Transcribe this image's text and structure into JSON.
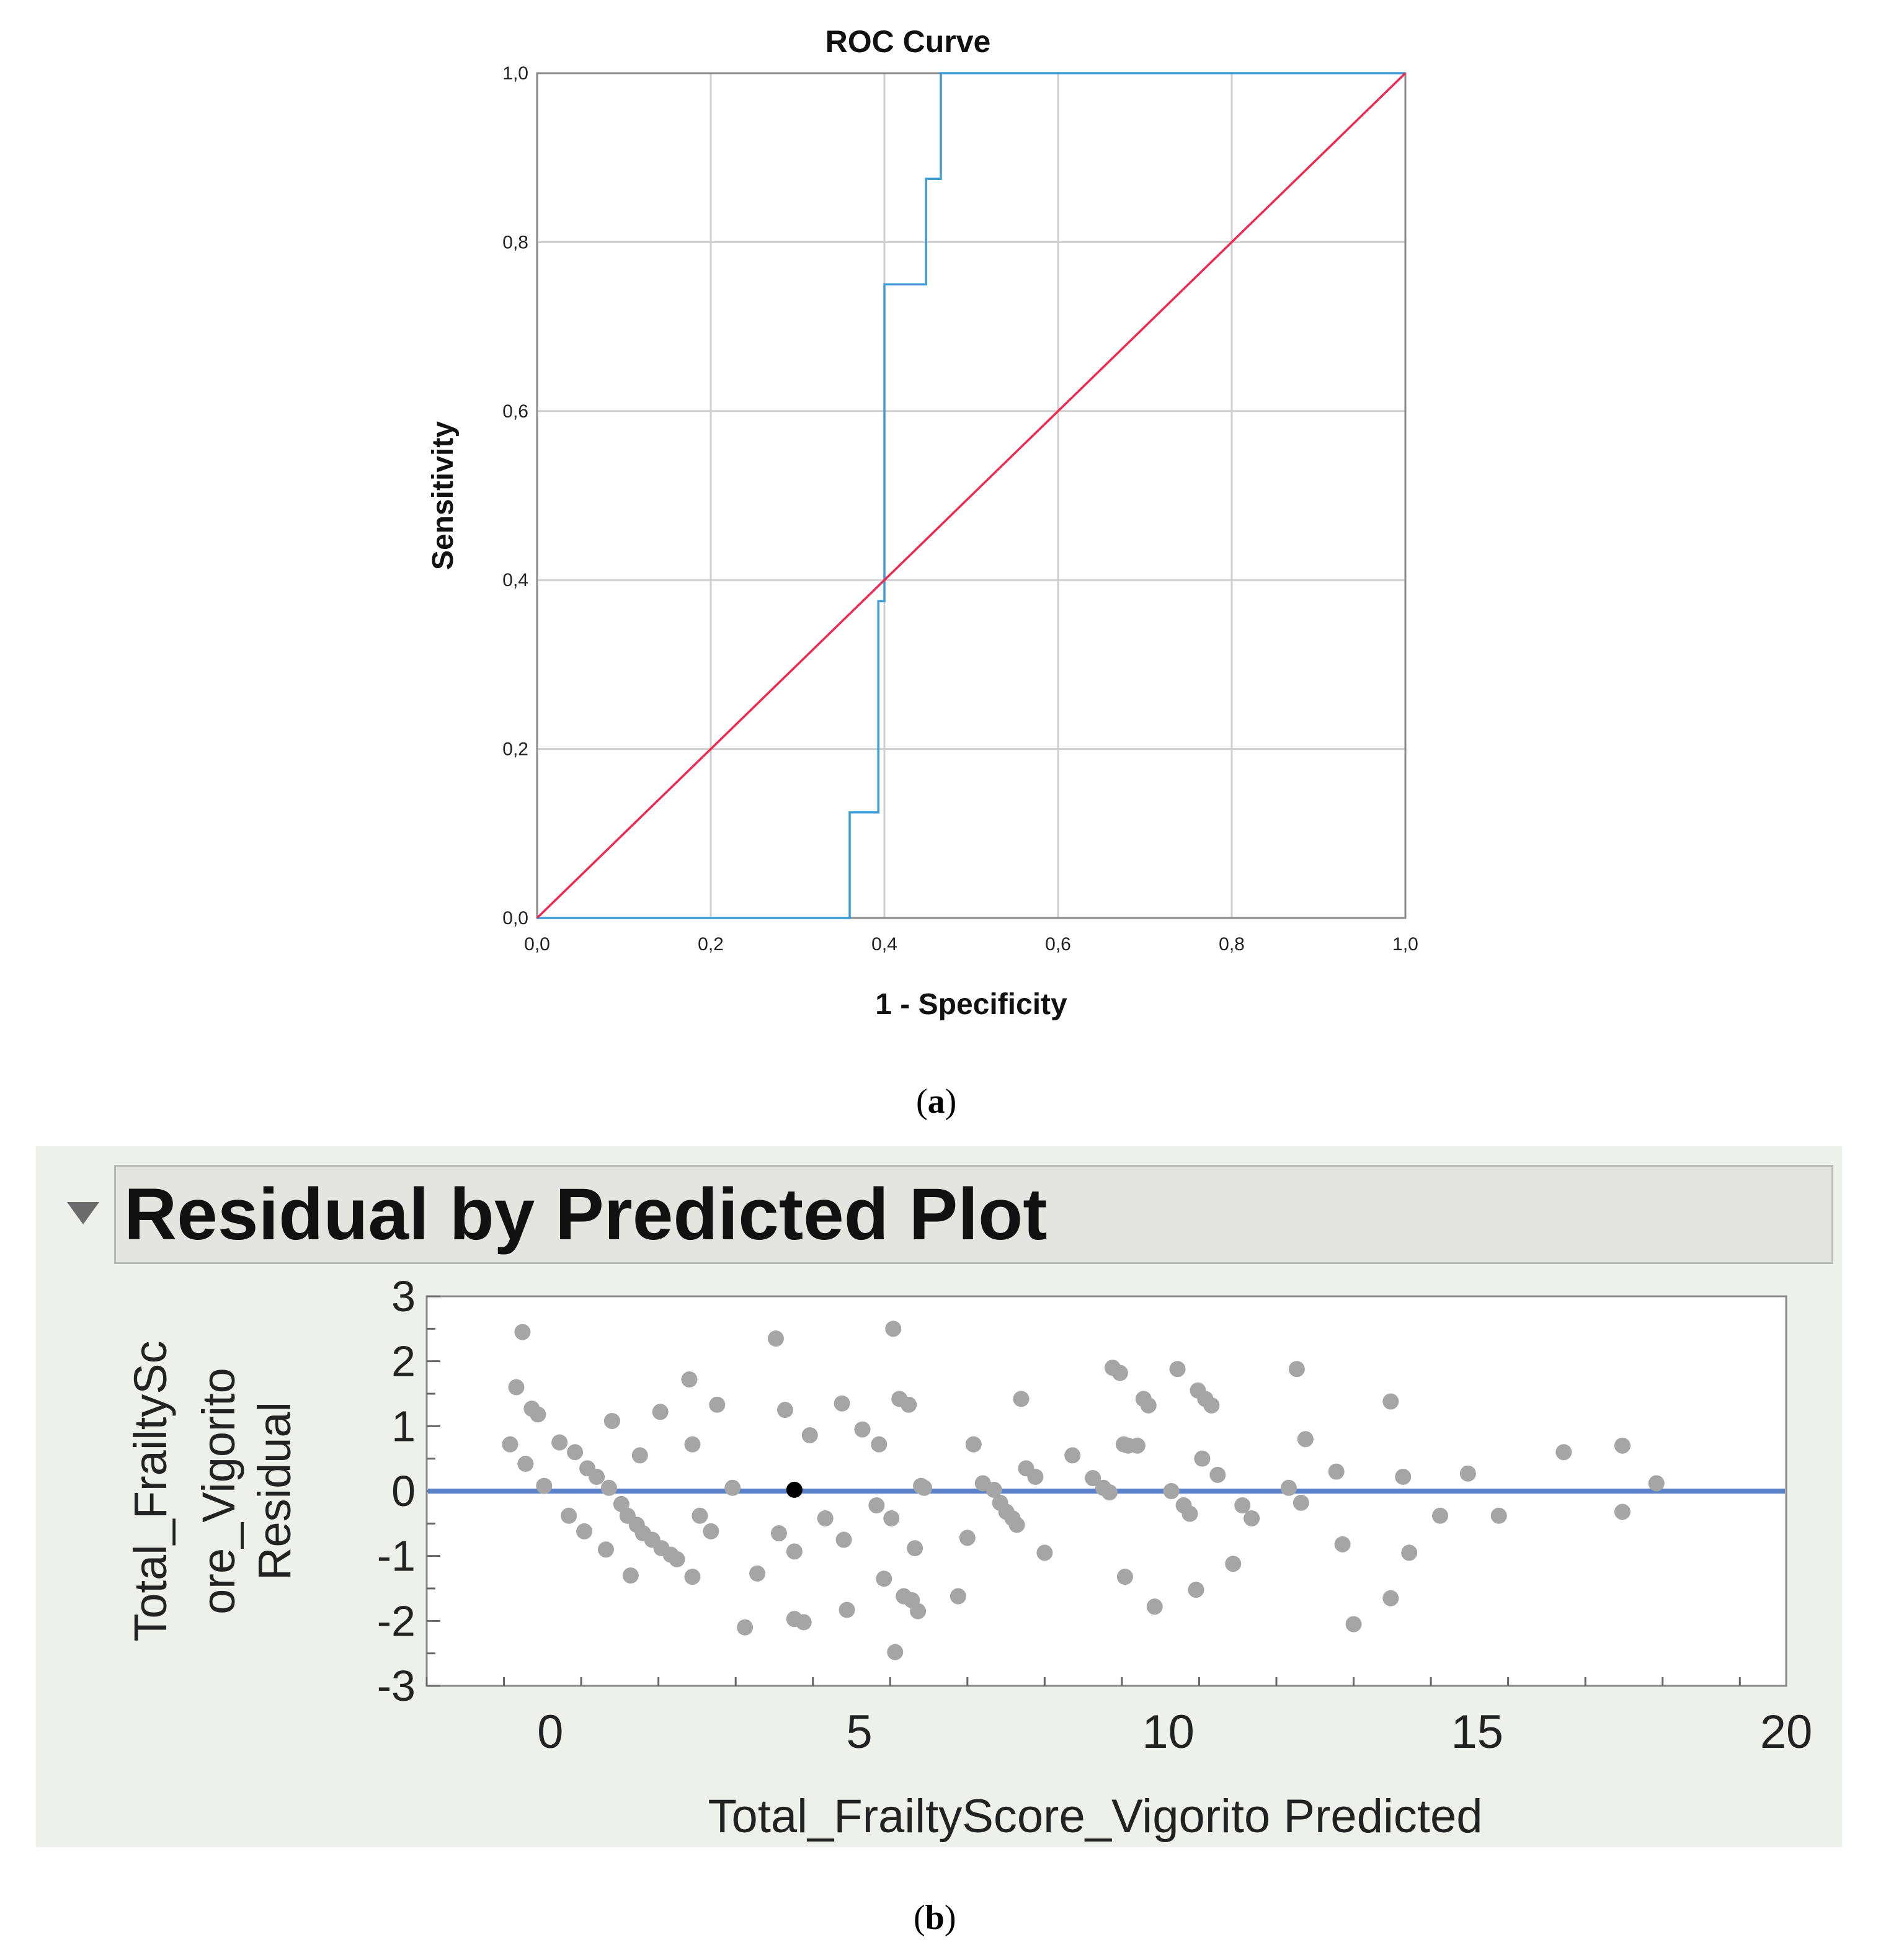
{
  "panel_a": {
    "caption_label": "a",
    "chart_data": {
      "type": "line",
      "title": "ROC Curve",
      "xlabel": "1 - Specificity",
      "ylabel": "Sensitivity",
      "xlim": [
        0,
        1
      ],
      "ylim": [
        0,
        1
      ],
      "xticks": [
        "0,0",
        "0,2",
        "0,4",
        "0,6",
        "0,8",
        "1,0"
      ],
      "yticks": [
        "0,0",
        "0,2",
        "0,4",
        "0,6",
        "0,8",
        "1,0"
      ],
      "grid": true,
      "colors": {
        "roc": "#3d9bd6",
        "reference": "#f0284f",
        "grid": "#cfcfcf"
      },
      "series": [
        {
          "points": [
            [
              0,
              0
            ],
            [
              0.36,
              0
            ],
            [
              0.36,
              0.125
            ],
            [
              0.393,
              0.125
            ],
            [
              0.393,
              0.375
            ],
            [
              0.4,
              0.375
            ],
            [
              0.4,
              0.75
            ],
            [
              0.448,
              0.75
            ],
            [
              0.448,
              0.875
            ],
            [
              0.465,
              0.875
            ],
            [
              0.465,
              1
            ],
            [
              1,
              1
            ]
          ]
        },
        {
          "points": [
            [
              0,
              0
            ],
            [
              1,
              1
            ]
          ]
        }
      ]
    }
  },
  "panel_b": {
    "caption_label": "b",
    "header_title": "Residual by Predicted Plot",
    "chart_data": {
      "type": "scatter",
      "title": "Residual by Predicted Plot",
      "xlabel": "Total_FrailtyScore_Vigorito Predicted",
      "ylabel_lines": [
        "Total_FrailtySc",
        "ore_Vigorito",
        "Residual"
      ],
      "xlim": [
        -2,
        20
      ],
      "ylim": [
        -3,
        3
      ],
      "xticks": [
        "0",
        "5",
        "10",
        "15",
        "20"
      ],
      "yticks": [
        "3",
        "2",
        "1",
        "0",
        "-1",
        "-2",
        "-3"
      ],
      "colors": {
        "points": "#a5a5a5",
        "highlight": "#000000",
        "zero_line": "#5b82c8"
      },
      "zero_line_y": 0,
      "highlight_point": [
        3.95,
        0.02
      ],
      "points": [
        [
          -0.65,
          0.72
        ],
        [
          -0.55,
          1.6
        ],
        [
          -0.45,
          2.45
        ],
        [
          -0.4,
          0.42
        ],
        [
          -0.3,
          1.27
        ],
        [
          -0.2,
          1.18
        ],
        [
          -0.1,
          0.08
        ],
        [
          0.15,
          0.75
        ],
        [
          0.3,
          -0.38
        ],
        [
          0.4,
          0.6
        ],
        [
          0.55,
          -0.62
        ],
        [
          0.6,
          0.35
        ],
        [
          0.75,
          0.22
        ],
        [
          0.9,
          -0.9
        ],
        [
          0.95,
          0.05
        ],
        [
          1.0,
          1.08
        ],
        [
          1.15,
          -0.2
        ],
        [
          1.25,
          -0.38
        ],
        [
          1.3,
          -1.3
        ],
        [
          1.4,
          -0.52
        ],
        [
          1.45,
          0.55
        ],
        [
          1.5,
          -0.65
        ],
        [
          1.65,
          -0.75
        ],
        [
          1.8,
          -0.88
        ],
        [
          1.95,
          -0.98
        ],
        [
          1.78,
          1.22
        ],
        [
          2.05,
          -1.05
        ],
        [
          2.25,
          1.72
        ],
        [
          2.3,
          0.72
        ],
        [
          2.3,
          -1.32
        ],
        [
          2.42,
          -0.38
        ],
        [
          2.6,
          -0.62
        ],
        [
          2.7,
          1.33
        ],
        [
          2.95,
          0.05
        ],
        [
          3.15,
          -2.1
        ],
        [
          3.35,
          -1.27
        ],
        [
          3.65,
          2.35
        ],
        [
          3.7,
          -0.65
        ],
        [
          3.8,
          1.25
        ],
        [
          3.95,
          -0.93
        ],
        [
          3.95,
          -1.97
        ],
        [
          4.1,
          -2.02
        ],
        [
          4.2,
          0.86
        ],
        [
          4.45,
          -0.42
        ],
        [
          4.72,
          1.35
        ],
        [
          4.75,
          -0.75
        ],
        [
          4.8,
          -1.83
        ],
        [
          5.05,
          0.95
        ],
        [
          5.28,
          -0.22
        ],
        [
          5.32,
          0.72
        ],
        [
          5.4,
          -1.35
        ],
        [
          5.52,
          -0.42
        ],
        [
          5.58,
          -2.48
        ],
        [
          5.55,
          2.5
        ],
        [
          5.65,
          1.42
        ],
        [
          5.72,
          -1.62
        ],
        [
          5.8,
          1.33
        ],
        [
          5.85,
          -1.68
        ],
        [
          5.9,
          -0.88
        ],
        [
          5.95,
          -1.85
        ],
        [
          6.0,
          0.08
        ],
        [
          6.05,
          0.05
        ],
        [
          6.6,
          -1.62
        ],
        [
          6.75,
          -0.72
        ],
        [
          6.85,
          0.72
        ],
        [
          7.0,
          0.12
        ],
        [
          7.18,
          0.02
        ],
        [
          7.28,
          -0.18
        ],
        [
          7.38,
          -0.32
        ],
        [
          7.48,
          -0.42
        ],
        [
          7.55,
          -0.52
        ],
        [
          7.62,
          1.42
        ],
        [
          7.7,
          0.35
        ],
        [
          7.85,
          0.22
        ],
        [
          8.0,
          -0.95
        ],
        [
          8.45,
          0.55
        ],
        [
          8.78,
          0.2
        ],
        [
          8.95,
          0.05
        ],
        [
          9.05,
          -0.02
        ],
        [
          9.1,
          1.9
        ],
        [
          9.22,
          1.82
        ],
        [
          9.28,
          0.72
        ],
        [
          9.3,
          -1.32
        ],
        [
          9.35,
          0.7
        ],
        [
          9.5,
          0.7
        ],
        [
          9.6,
          1.42
        ],
        [
          9.68,
          1.32
        ],
        [
          9.78,
          -1.78
        ],
        [
          10.05,
          0.0
        ],
        [
          10.15,
          1.88
        ],
        [
          10.25,
          -0.22
        ],
        [
          10.35,
          -0.35
        ],
        [
          10.45,
          -1.52
        ],
        [
          10.48,
          1.55
        ],
        [
          10.55,
          0.5
        ],
        [
          10.6,
          1.42
        ],
        [
          10.7,
          1.32
        ],
        [
          10.8,
          0.25
        ],
        [
          11.05,
          -1.12
        ],
        [
          11.2,
          -0.22
        ],
        [
          11.35,
          -0.42
        ],
        [
          11.95,
          0.05
        ],
        [
          12.08,
          1.88
        ],
        [
          12.15,
          -0.18
        ],
        [
          12.22,
          0.8
        ],
        [
          12.72,
          0.3
        ],
        [
          12.82,
          -0.82
        ],
        [
          13.0,
          -2.05
        ],
        [
          13.6,
          1.38
        ],
        [
          13.6,
          -1.65
        ],
        [
          13.8,
          0.22
        ],
        [
          13.9,
          -0.95
        ],
        [
          14.4,
          -0.38
        ],
        [
          14.85,
          0.27
        ],
        [
          15.35,
          -0.38
        ],
        [
          16.4,
          0.6
        ],
        [
          17.35,
          0.7
        ],
        [
          17.35,
          -0.32
        ],
        [
          17.9,
          0.12
        ]
      ]
    }
  }
}
